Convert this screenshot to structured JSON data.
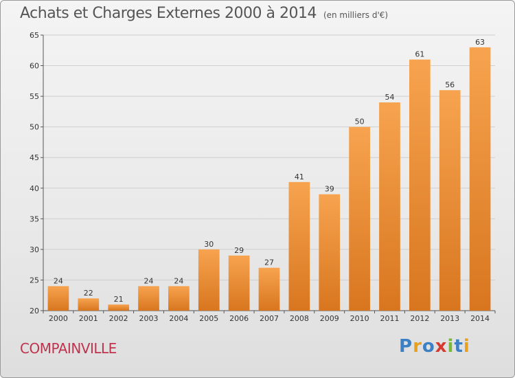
{
  "title": "Achats et Charges Externes 2000 à 2014",
  "subtitle": "(en milliers d'€)",
  "commune": "COMPAINVILLE",
  "logo": {
    "letters": [
      "P",
      "r",
      "o",
      "x",
      "i",
      "t",
      "i"
    ],
    "colors": [
      "#3b7fc4",
      "#e8a020",
      "#3b7fc4",
      "#d63a2e",
      "#7ab83a",
      "#3b7fc4",
      "#e8a020"
    ]
  },
  "colors": {
    "bar_top": "#f7a34f",
    "bar_bottom": "#d8761f",
    "grid": "#cfcfcf",
    "axis": "#555555"
  },
  "chart_data": {
    "type": "bar",
    "categories": [
      "2000",
      "2001",
      "2002",
      "2003",
      "2004",
      "2005",
      "2006",
      "2007",
      "2008",
      "2009",
      "2010",
      "2011",
      "2012",
      "2013",
      "2014"
    ],
    "values": [
      24,
      22,
      21,
      24,
      24,
      30,
      29,
      27,
      41,
      39,
      50,
      54,
      61,
      56,
      63
    ],
    "ylim": [
      20,
      65
    ],
    "yticks": [
      20,
      25,
      30,
      35,
      40,
      45,
      50,
      55,
      60,
      65
    ],
    "grid": "horizontal",
    "xlabel": "",
    "ylabel": ""
  }
}
